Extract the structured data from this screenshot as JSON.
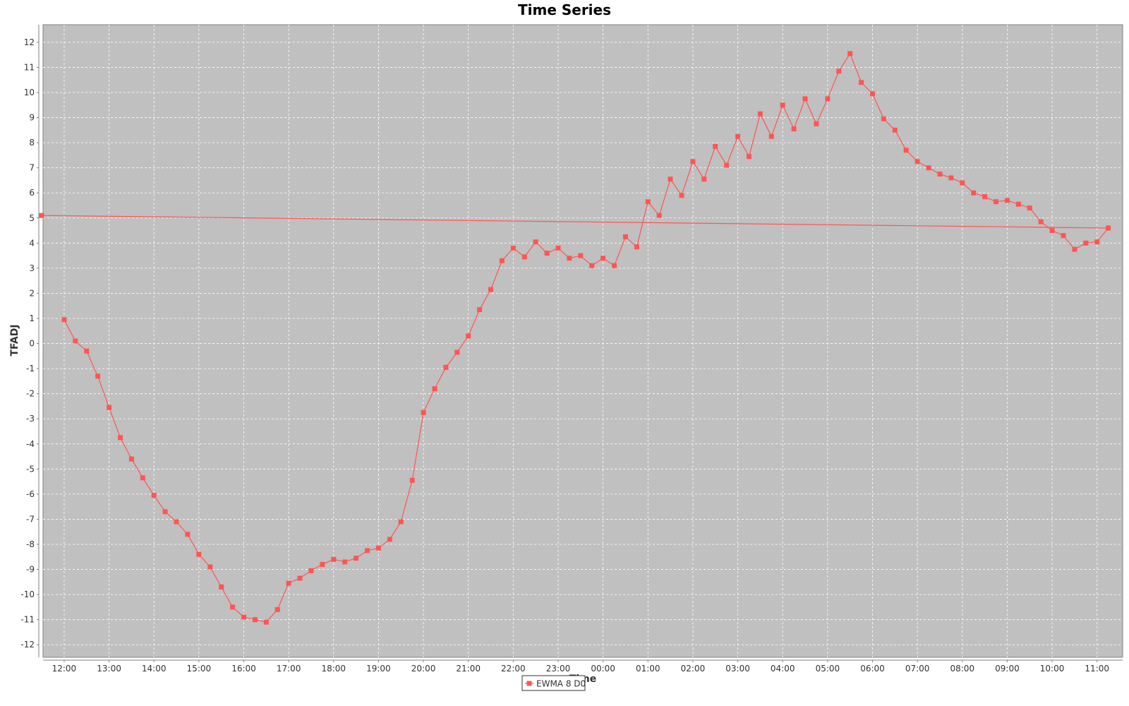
{
  "chart_data": {
    "type": "line",
    "title": "Time Series",
    "xlabel": "Time",
    "ylabel": "TFADJ",
    "ylim": [
      -12.5,
      12.7
    ],
    "yticks": [
      -12,
      -11,
      -10,
      -9,
      -8,
      -7,
      -6,
      -5,
      -4,
      -3,
      -2,
      -1,
      0,
      1,
      2,
      3,
      4,
      5,
      6,
      7,
      8,
      9,
      10,
      11,
      12
    ],
    "xlim_hours": [
      11.53,
      35.57
    ],
    "xticks": [
      "12:00",
      "13:00",
      "14:00",
      "15:00",
      "16:00",
      "17:00",
      "18:00",
      "19:00",
      "20:00",
      "21:00",
      "22:00",
      "23:00",
      "00:00",
      "01:00",
      "02:00",
      "03:00",
      "04:00",
      "05:00",
      "06:00",
      "07:00",
      "08:00",
      "09:00",
      "10:00",
      "11:00"
    ],
    "grid": true,
    "legend": "bottom-center",
    "series": [
      {
        "name": "EWMA 8 D0",
        "color": "#ff5555",
        "x": [
          "12:00",
          "12:15",
          "12:30",
          "12:45",
          "13:00",
          "13:15",
          "13:30",
          "13:45",
          "14:00",
          "14:15",
          "14:30",
          "14:45",
          "15:00",
          "15:15",
          "15:30",
          "15:45",
          "16:00",
          "16:15",
          "16:30",
          "16:45",
          "17:00",
          "17:15",
          "17:30",
          "17:45",
          "18:00",
          "18:15",
          "18:30",
          "18:45",
          "19:00",
          "19:15",
          "19:30",
          "19:45",
          "20:00",
          "20:15",
          "20:30",
          "20:45",
          "21:00",
          "21:15",
          "21:30",
          "21:45",
          "22:00",
          "22:15",
          "22:30",
          "22:45",
          "23:00",
          "23:15",
          "23:30",
          "23:45",
          "00:00",
          "00:15",
          "00:30",
          "00:45",
          "01:00",
          "01:15",
          "01:30",
          "01:45",
          "02:00",
          "02:15",
          "02:30",
          "02:45",
          "03:00",
          "03:15",
          "03:30",
          "03:45",
          "04:00",
          "04:15",
          "04:30",
          "04:45",
          "05:00",
          "05:15",
          "05:30",
          "05:45",
          "06:00",
          "06:15",
          "06:30",
          "06:45",
          "07:00",
          "07:15",
          "07:30",
          "07:45",
          "08:00",
          "08:15",
          "08:30",
          "08:45",
          "09:00",
          "09:15",
          "09:30",
          "09:45",
          "10:00",
          "10:15",
          "10:30",
          "10:45",
          "11:00",
          "11:15",
          "11:30"
        ],
        "values": [
          0.95,
          0.1,
          -0.3,
          -1.3,
          -2.55,
          -3.75,
          -4.6,
          -5.35,
          -6.05,
          -6.7,
          -7.1,
          -7.6,
          -8.4,
          -8.9,
          -9.7,
          -10.5,
          -10.9,
          -11.0,
          -11.1,
          -10.6,
          -9.55,
          -9.35,
          -9.05,
          -8.8,
          -8.6,
          -8.7,
          -8.55,
          -8.25,
          -8.15,
          -7.8,
          -7.1,
          -5.45,
          -2.75,
          -1.8,
          -0.95,
          -0.35,
          0.3,
          1.35,
          2.15,
          3.3,
          3.8,
          3.45,
          4.05,
          3.6,
          3.8,
          3.4,
          3.5,
          3.1,
          3.4,
          3.1,
          4.25,
          3.85,
          5.65,
          5.1,
          6.55,
          5.9,
          7.25,
          6.55,
          7.85,
          7.1,
          8.25,
          7.45,
          9.15,
          8.25,
          9.5,
          8.55,
          9.75,
          8.75,
          9.75,
          10.85,
          11.55,
          10.4,
          9.95,
          8.95,
          8.5,
          7.7,
          7.25,
          7.0,
          6.75,
          6.6,
          6.4,
          6.0,
          5.85,
          5.65,
          5.7,
          5.55,
          5.4,
          4.85,
          4.5,
          4.3,
          3.75,
          4.0,
          4.05,
          4.6,
          5.1
        ]
      }
    ]
  }
}
